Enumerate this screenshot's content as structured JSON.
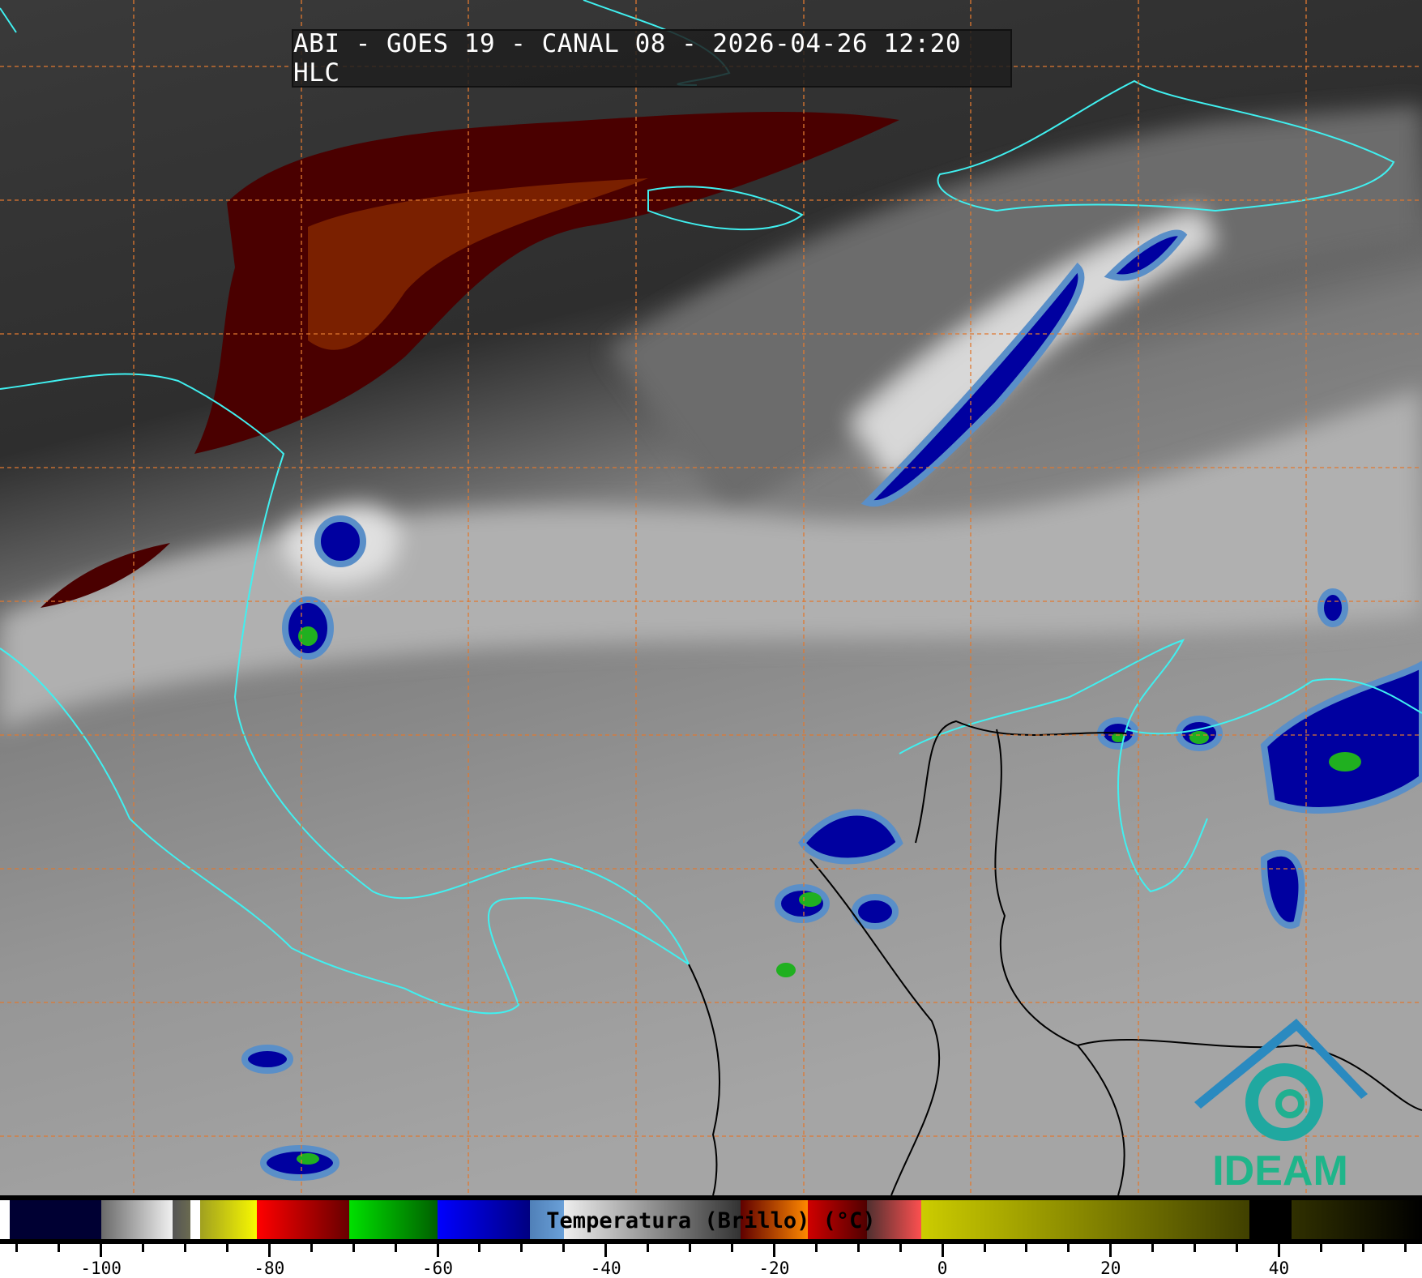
{
  "title": "ABI - GOES 19 - CANAL 08 - 2026-04-26 12:20 HLC",
  "logo": {
    "text": "IDEAM",
    "colors": [
      "#2a7fc0",
      "#1fb58a"
    ]
  },
  "map": {
    "coastline_color": "#40f0f0",
    "border_color": "#000000",
    "grid_color": "#e07830"
  },
  "colorbar": {
    "label": "Temperatura (Brillo) (°C)",
    "range": [
      -112,
      57
    ],
    "ticks": [
      -100,
      -80,
      -60,
      -40,
      -20,
      0,
      20,
      40
    ],
    "minor_step": 5,
    "segments": [
      {
        "from": -112,
        "to": -110.8,
        "colors": [
          "#ffffff",
          "#ffffff"
        ]
      },
      {
        "from": -110.8,
        "to": -100,
        "colors": [
          "#000033",
          "#000033"
        ]
      },
      {
        "from": -100,
        "to": -91.5,
        "colors": [
          "#6a6a6a",
          "#f0f0f0"
        ]
      },
      {
        "from": -91.5,
        "to": -89.4,
        "colors": [
          "#555555",
          "#6a6a50"
        ]
      },
      {
        "from": -89.4,
        "to": -88.2,
        "colors": [
          "#ffffff",
          "#ffffff"
        ]
      },
      {
        "from": -88.2,
        "to": -81.5,
        "colors": [
          "#a0a020",
          "#f8f800"
        ]
      },
      {
        "from": -81.5,
        "to": -70.5,
        "colors": [
          "#ff0000",
          "#680000"
        ]
      },
      {
        "from": -70.5,
        "to": -60,
        "colors": [
          "#00e000",
          "#006000"
        ]
      },
      {
        "from": -60,
        "to": -49,
        "colors": [
          "#0000ff",
          "#000080"
        ]
      },
      {
        "from": -49,
        "to": -45,
        "colors": [
          "#5080b8",
          "#6aa0d8"
        ]
      },
      {
        "from": -45,
        "to": -24,
        "colors": [
          "#eeeeee",
          "#333333"
        ]
      },
      {
        "from": -24,
        "to": -16,
        "colors": [
          "#600000",
          "#ff8800"
        ]
      },
      {
        "from": -16,
        "to": -9,
        "colors": [
          "#d00000",
          "#500000"
        ]
      },
      {
        "from": -9,
        "to": -2.5,
        "colors": [
          "#503030",
          "#ff5050"
        ]
      },
      {
        "from": -2.5,
        "to": 36.5,
        "colors": [
          "#cccc00",
          "#404000"
        ]
      },
      {
        "from": 36.5,
        "to": 41.5,
        "colors": [
          "#000000",
          "#000000"
        ]
      },
      {
        "from": 41.5,
        "to": 57,
        "colors": [
          "#303000",
          "#000000"
        ]
      }
    ]
  }
}
